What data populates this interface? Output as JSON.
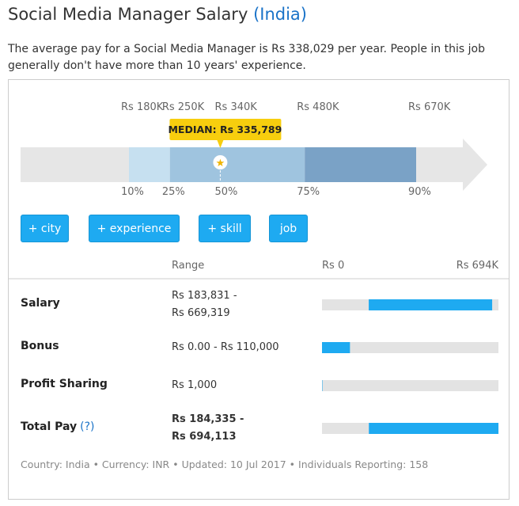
{
  "header": {
    "title": "Social Media Manager Salary",
    "location": "(India)"
  },
  "summary": "The average pay for a Social Media Manager is Rs 338,029 per year. People in this job generally don't have more than 10 years' experience.",
  "percentiles": [
    {
      "label": "10%",
      "value": 180000,
      "value_label": "Rs 180K"
    },
    {
      "label": "25%",
      "value": 250000,
      "value_label": "Rs 250K"
    },
    {
      "label": "50%",
      "value": 340000,
      "value_label": "Rs 340K"
    },
    {
      "label": "75%",
      "value": 480000,
      "value_label": "Rs 480K"
    },
    {
      "label": "90%",
      "value": 670000,
      "value_label": "Rs 670K"
    }
  ],
  "median": {
    "value": 335789,
    "label": "MEDIAN: Rs 335,789"
  },
  "buttons": [
    "+ city",
    "+ experience",
    "+ skill",
    "job"
  ],
  "table": {
    "range_header": "Range",
    "scale": {
      "min": {
        "value": 0,
        "label": "Rs 0"
      },
      "max": {
        "value": 694000,
        "label": "Rs 694K"
      }
    },
    "rows": [
      {
        "label": "Salary",
        "range": [
          "Rs 183,831 -",
          "Rs 669,319"
        ],
        "low": 183831,
        "high": 669319
      },
      {
        "label": "Bonus",
        "range": [
          "Rs 0.00 - Rs 110,000"
        ],
        "low": 0,
        "high": 110000
      },
      {
        "label": "Profit Sharing",
        "range": [
          "Rs 1,000"
        ],
        "low": 1000,
        "high": 1000
      },
      {
        "label": "Total Pay",
        "help": "(?)",
        "range": [
          "Rs 184,335 -",
          "Rs 694,113"
        ],
        "low": 184335,
        "high": 694113
      }
    ]
  },
  "footer": "Country: India • Currency: INR • Updated: 10 Jul 2017 • Individuals Reporting: 158"
}
